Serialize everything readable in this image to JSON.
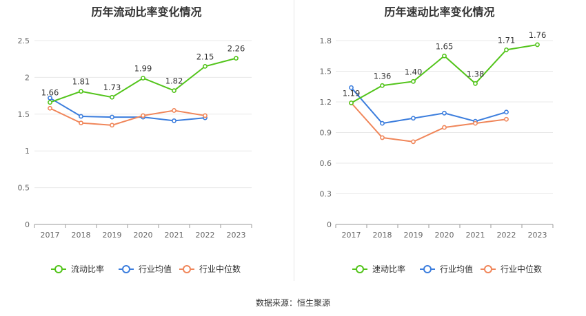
{
  "source_text": "数据来源：恒生聚源",
  "chart_data": [
    {
      "type": "line",
      "title": "历年流动比率变化情况",
      "categories": [
        "2017",
        "2018",
        "2019",
        "2020",
        "2021",
        "2022",
        "2023"
      ],
      "yticks": [
        "0",
        "0.5",
        "1",
        "1.5",
        "2",
        "2.5"
      ],
      "ylim": [
        0,
        2.5
      ],
      "grid": true,
      "legend_position": "bottom",
      "series": [
        {
          "name": "流动比率",
          "color": "#52c41a",
          "values": [
            1.66,
            1.81,
            1.73,
            1.99,
            1.82,
            2.15,
            2.26
          ],
          "labels": [
            "1.66",
            "1.81",
            "1.73",
            "1.99",
            "1.82",
            "2.15",
            "2.26"
          ]
        },
        {
          "name": "行业均值",
          "color": "#3b7ddd",
          "values": [
            1.72,
            1.47,
            1.46,
            1.46,
            1.41,
            1.45,
            null
          ]
        },
        {
          "name": "行业中位数",
          "color": "#f0865a",
          "values": [
            1.58,
            1.38,
            1.35,
            1.48,
            1.55,
            1.48,
            null
          ]
        }
      ]
    },
    {
      "type": "line",
      "title": "历年速动比率变化情况",
      "categories": [
        "2017",
        "2018",
        "2019",
        "2020",
        "2021",
        "2022",
        "2023"
      ],
      "yticks": [
        "0",
        "0.3",
        "0.6",
        "0.9",
        "1.2",
        "1.5",
        "1.8"
      ],
      "ylim": [
        0,
        1.8
      ],
      "grid": true,
      "legend_position": "bottom",
      "series": [
        {
          "name": "速动比率",
          "color": "#52c41a",
          "values": [
            1.19,
            1.36,
            1.4,
            1.65,
            1.38,
            1.71,
            1.76
          ],
          "labels": [
            "1.19",
            "1.36",
            "1.40",
            "1.65",
            "1.38",
            "1.71",
            "1.76"
          ]
        },
        {
          "name": "行业均值",
          "color": "#3b7ddd",
          "values": [
            1.34,
            0.99,
            1.04,
            1.09,
            1.01,
            1.1,
            null
          ]
        },
        {
          "name": "行业中位数",
          "color": "#f0865a",
          "values": [
            1.19,
            0.85,
            0.81,
            0.95,
            0.99,
            1.03,
            null
          ]
        }
      ]
    }
  ]
}
